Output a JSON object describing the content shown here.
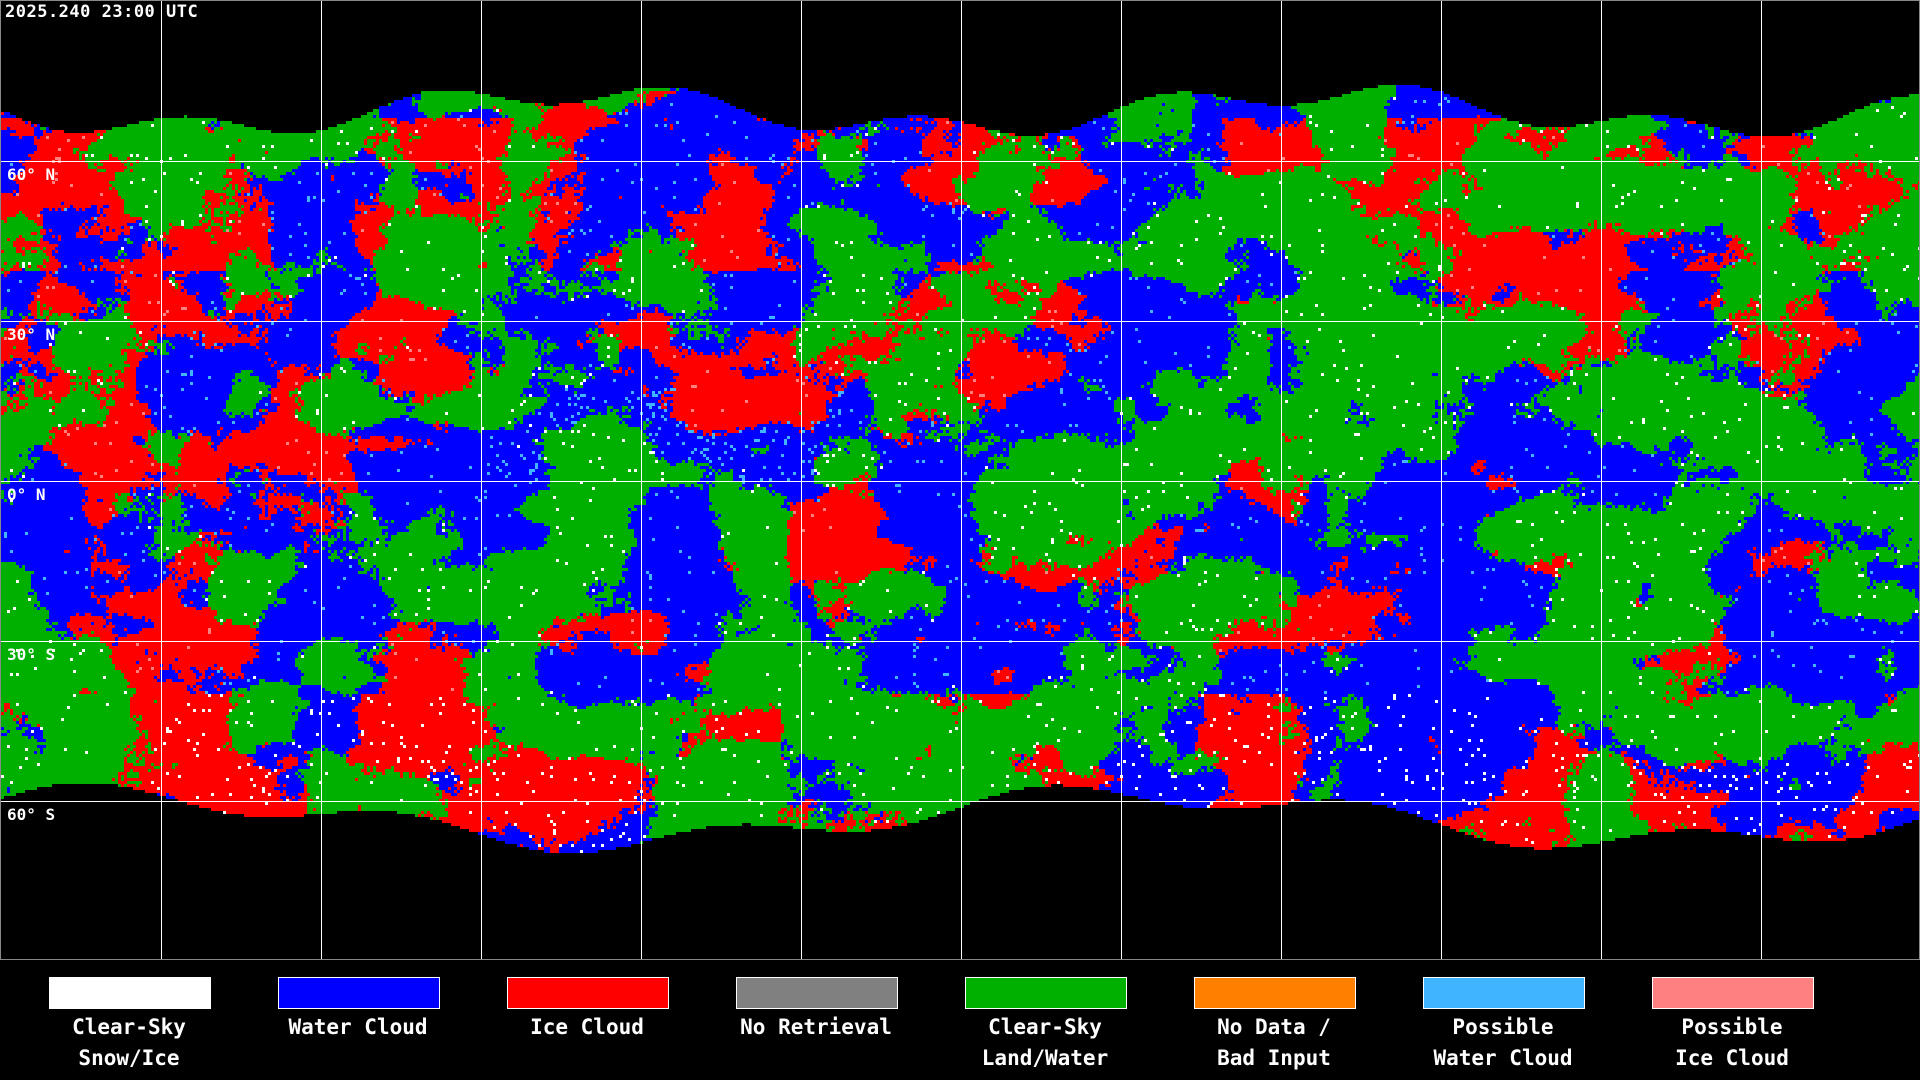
{
  "title": "2025.240 23:00 UTC",
  "latitude_labels": [
    "60° N",
    "30° N",
    "0° N",
    "30° S",
    "60° S"
  ],
  "map": {
    "projection": "equirectangular",
    "grid_spacing_degrees": 30,
    "coastlines": "white"
  },
  "legend": [
    {
      "line1": "Clear-Sky",
      "line2": "Snow/Ice",
      "color": "#ffffff"
    },
    {
      "line1": "Water Cloud",
      "line2": "",
      "color": "#0000ff"
    },
    {
      "line1": "Ice Cloud",
      "line2": "",
      "color": "#ff0000"
    },
    {
      "line1": "No Retrieval",
      "line2": "",
      "color": "#808080"
    },
    {
      "line1": "Clear-Sky",
      "line2": "Land/Water",
      "color": "#00b000"
    },
    {
      "line1": "No Data /",
      "line2": "Bad Input",
      "color": "#ff8000"
    },
    {
      "line1": "Possible",
      "line2": "Water Cloud",
      "color": "#40b4ff"
    },
    {
      "line1": "Possible",
      "line2": "Ice Cloud",
      "color": "#ff8080"
    }
  ]
}
